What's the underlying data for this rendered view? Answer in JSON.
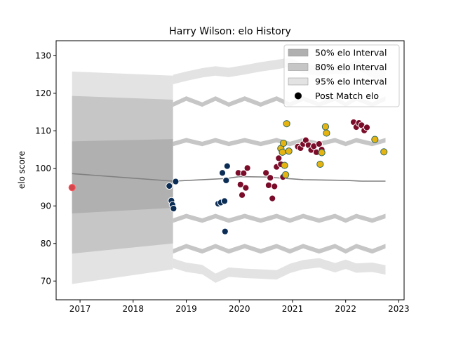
{
  "chart_data": {
    "type": "scatter",
    "title": "Harry Wilson: elo History",
    "xlabel": "",
    "ylabel": "elo score",
    "xlim": [
      2016.55,
      2023.1
    ],
    "ylim": [
      65,
      134
    ],
    "xticks": [
      2017,
      2018,
      2019,
      2020,
      2021,
      2022,
      2023
    ],
    "yticks": [
      70,
      80,
      90,
      100,
      110,
      120,
      130
    ],
    "legend_position": "top-right",
    "legend": [
      {
        "label": "50% elo Interval",
        "kind": "band50"
      },
      {
        "label": "80% elo Interval",
        "kind": "band80"
      },
      {
        "label": "95% elo Interval",
        "kind": "band95"
      },
      {
        "label": "Post Match elo",
        "kind": "point"
      }
    ],
    "colors": {
      "band50": "#b0b0b0",
      "band80": "#c6c6c6",
      "band95": "#e3e3e3",
      "line": "#808080",
      "navy": "#0b2d55",
      "maroon": "#7a0c2a",
      "yellow": "#e6b411",
      "yellow_edge": "#2f6a63",
      "red": "#d5474d"
    },
    "bands": {
      "segment1": {
        "x": [
          2016.85,
          2018.75
        ],
        "band95": {
          "upper": [
            125.8,
            124.7
          ],
          "lower": [
            69.2,
            73.1
          ]
        },
        "band80": {
          "upper": [
            119.3,
            118.3
          ],
          "lower": [
            77.3,
            80.0
          ]
        },
        "band50": {
          "upper": [
            107.2,
            107.8
          ],
          "lower": [
            88.0,
            89.5
          ]
        }
      },
      "center_line": {
        "x": [
          2016.85,
          2018.75,
          2019.75,
          2020.0,
          2020.5,
          2020.9,
          2021.2,
          2021.6,
          2022.0,
          2022.3,
          2022.75
        ],
        "y": [
          98.6,
          96.6,
          97.3,
          97.8,
          97.7,
          97.3,
          97.0,
          96.9,
          96.8,
          96.6,
          96.6
        ]
      },
      "upper95": {
        "x": [
          2018.75,
          2019.0,
          2019.3,
          2019.55,
          2019.8,
          2020.1,
          2020.4,
          2020.7,
          2020.95,
          2021.2,
          2021.5,
          2021.8,
          2022.0,
          2022.2,
          2022.5,
          2022.75
        ],
        "y": [
          124.9,
          125.8,
          126.7,
          127.2,
          126.8,
          127.5,
          128.3,
          128.9,
          129.5,
          127.8,
          127.2,
          127.7,
          127.4,
          129.0,
          126.6,
          126.1
        ]
      },
      "lower95": {
        "x": [
          2018.75,
          2019.0,
          2019.3,
          2019.55,
          2019.8,
          2020.1,
          2020.4,
          2020.7,
          2020.95,
          2021.2,
          2021.5,
          2021.8,
          2022.0,
          2022.2,
          2022.5,
          2022.75
        ],
        "y": [
          73.5,
          72.4,
          71.8,
          69.5,
          71.1,
          70.8,
          70.6,
          70.4,
          72.1,
          73.1,
          73.6,
          72.3,
          73.2,
          72.2,
          72.4,
          71.7
        ]
      }
    },
    "series": [
      {
        "name": "Post Match elo",
        "color_key": "navy",
        "x": [
          2018.68,
          2018.72,
          2018.74,
          2018.76,
          2018.8,
          2019.6,
          2019.65,
          2019.68,
          2019.72,
          2019.73,
          2019.75,
          2019.77
        ],
        "y": [
          95.3,
          91.4,
          90.3,
          89.3,
          96.5,
          90.6,
          90.9,
          98.8,
          91.3,
          83.2,
          96.8,
          100.6
        ]
      },
      {
        "name": "Post Match elo",
        "color_key": "maroon",
        "x": [
          2019.98,
          2020.02,
          2020.05,
          2020.08,
          2020.12,
          2020.15,
          2020.5,
          2020.55,
          2020.58,
          2020.62,
          2020.66,
          2020.7,
          2020.74,
          2020.78,
          2020.82,
          2021.1,
          2021.15,
          2021.2,
          2021.25,
          2021.3,
          2021.35,
          2021.4,
          2021.45,
          2021.5,
          2021.55,
          2022.15,
          2022.2,
          2022.25,
          2022.3,
          2022.35,
          2022.4
        ],
        "y": [
          98.8,
          95.7,
          92.9,
          98.7,
          94.8,
          100.1,
          98.8,
          95.5,
          97.5,
          92.0,
          95.2,
          100.4,
          102.7,
          101.1,
          97.7,
          105.8,
          105.4,
          106.5,
          107.5,
          106.2,
          104.9,
          105.9,
          104.3,
          106.5,
          105.0,
          112.3,
          111.0,
          112.1,
          111.5,
          110.1,
          110.9
        ]
      },
      {
        "name": "Post Match elo",
        "color_key": "yellow",
        "x": [
          2020.78,
          2020.81,
          2020.83,
          2020.85,
          2020.87,
          2020.89,
          2020.93,
          2021.52,
          2021.55,
          2021.62,
          2021.64,
          2022.55,
          2022.72
        ],
        "y": [
          105.3,
          104.3,
          106.7,
          100.8,
          98.3,
          111.9,
          104.6,
          101.1,
          104.2,
          111.1,
          109.4,
          107.7,
          104.4
        ]
      },
      {
        "name": "Post Match elo",
        "color_key": "red",
        "x": [
          2016.85
        ],
        "y": [
          94.9
        ]
      }
    ]
  }
}
